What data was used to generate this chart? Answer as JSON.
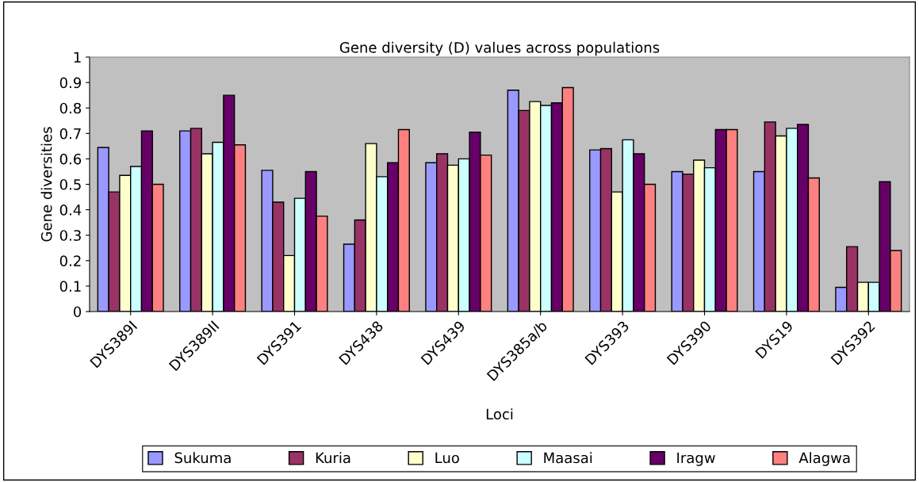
{
  "chart_data": {
    "type": "bar",
    "title": "Gene diversity (D) values across populations",
    "xlabel": "Loci",
    "ylabel": "Gene diversities",
    "categories": [
      "DYS389I",
      "DYS389II",
      "DYS391",
      "DYS438",
      "DYS439",
      "DYS385a/b",
      "DYS393",
      "DYS390",
      "DYS19",
      "DYS392"
    ],
    "series": [
      {
        "name": "Sukuma",
        "color": "#9999ff",
        "values": [
          0.645,
          0.71,
          0.555,
          0.265,
          0.585,
          0.87,
          0.635,
          0.55,
          0.55,
          0.095
        ]
      },
      {
        "name": "Kuria",
        "color": "#993366",
        "values": [
          0.47,
          0.72,
          0.43,
          0.36,
          0.62,
          0.79,
          0.64,
          0.54,
          0.745,
          0.255
        ]
      },
      {
        "name": "Luo",
        "color": "#ffffcc",
        "values": [
          0.535,
          0.62,
          0.22,
          0.66,
          0.575,
          0.825,
          0.47,
          0.595,
          0.69,
          0.115
        ]
      },
      {
        "name": "Maasai",
        "color": "#ccffff",
        "values": [
          0.57,
          0.665,
          0.445,
          0.53,
          0.6,
          0.81,
          0.675,
          0.565,
          0.72,
          0.115
        ]
      },
      {
        "name": "Iragw",
        "color": "#660066",
        "values": [
          0.71,
          0.85,
          0.55,
          0.585,
          0.705,
          0.82,
          0.62,
          0.715,
          0.735,
          0.51
        ]
      },
      {
        "name": "Alagwa",
        "color": "#ff8080",
        "values": [
          0.5,
          0.655,
          0.375,
          0.715,
          0.615,
          0.88,
          0.5,
          0.715,
          0.525,
          0.24
        ]
      }
    ],
    "ylim": [
      0,
      1
    ],
    "yticks": [
      0,
      0.1,
      0.2,
      0.3,
      0.4,
      0.5,
      0.6,
      0.7,
      0.8,
      0.9,
      1
    ],
    "grid": false,
    "legend": "bottom"
  }
}
